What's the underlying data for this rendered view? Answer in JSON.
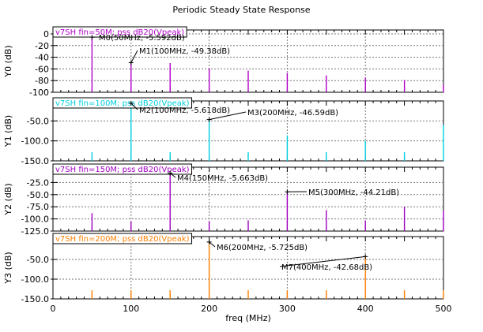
{
  "title": "Periodic Steady State Response",
  "chart_data": {
    "type": "bar",
    "title": "Periodic Steady State Response",
    "xlabel": "freq (MHz)",
    "xlim": [
      0,
      500
    ],
    "xticks": [
      "0",
      "100",
      "200",
      "300",
      "400",
      "500"
    ],
    "grid": true,
    "panels": [
      {
        "legend": "v7SH fin=50M; pss dB20(Vpeak)",
        "ylabel": "Y0 (dB)",
        "color": "#b000c8",
        "ylim": [
          -100,
          10
        ],
        "yticks": [
          "0",
          "-20",
          "-40",
          "-60",
          "-80",
          "-100"
        ],
        "yticks_values": [
          0,
          -20,
          -40,
          -60,
          -80,
          -100
        ],
        "x": [
          50,
          100,
          150,
          200,
          250,
          300,
          350,
          400,
          450,
          500
        ],
        "values": [
          -5.592,
          -49.38,
          -50,
          -59,
          -63,
          -67,
          -71,
          -75,
          -79,
          -87
        ],
        "markers": [
          {
            "label": "M0(50MHz, -5.592dB)",
            "x": 50,
            "y": -5.592
          },
          {
            "label": "M1(100MHz, -49.38dB)",
            "x": 100,
            "y": -49.38
          }
        ]
      },
      {
        "legend": "v7SH fin=100M; pss dB20(Vpeak)",
        "ylabel": "Y1 (dB)",
        "color": "#00cfe0",
        "ylim": [
          -150,
          0
        ],
        "yticks": [
          "-50.0",
          "-100.0",
          "-150.0"
        ],
        "yticks_values": [
          -50,
          -100,
          -150
        ],
        "x": [
          50,
          100,
          150,
          200,
          250,
          300,
          350,
          400,
          450,
          500
        ],
        "values": [
          -128,
          -5.618,
          -128,
          -46.59,
          -128,
          -86,
          -128,
          -100,
          -128,
          -60
        ],
        "markers": [
          {
            "label": "M2(100MHz, -5.618dB)",
            "x": 100,
            "y": -5.618
          },
          {
            "label": "M3(200MHz, -46.59dB)",
            "x": 200,
            "y": -46.59
          }
        ]
      },
      {
        "legend": "v7SH fin=150M; pss dB20(Vpeak)",
        "ylabel": "Y2 (dB)",
        "color": "#a000c0",
        "ylim": [
          -125,
          0
        ],
        "yticks": [
          "-25.0",
          "-50.0",
          "-75.0",
          "-100.0",
          "-125.0"
        ],
        "yticks_values": [
          -25,
          -50,
          -75,
          -100,
          -125
        ],
        "x": [
          50,
          100,
          150,
          200,
          250,
          300,
          350,
          400,
          450,
          500
        ],
        "values": [
          -88,
          -105,
          -5.663,
          -105,
          -103,
          -44.21,
          -82,
          -103,
          -75,
          -83
        ],
        "markers": [
          {
            "label": "M4(150MHz, -5.663dB)",
            "x": 150,
            "y": -5.663
          },
          {
            "label": "M5(300MHz, -44.21dB)",
            "x": 300,
            "y": -44.21
          }
        ]
      },
      {
        "legend": "v7SH fin=200M; pss dB20(Vpeak)",
        "ylabel": "Y3 (dB)",
        "color": "#ff8000",
        "ylim": [
          -150,
          0
        ],
        "yticks": [
          "-50.0",
          "-100.0",
          "-150.0"
        ],
        "yticks_values": [
          -50,
          -100,
          -150
        ],
        "x": [
          50,
          100,
          150,
          200,
          250,
          300,
          350,
          400,
          450,
          500
        ],
        "values": [
          -128,
          -128,
          -128,
          -5.725,
          -128,
          -128,
          -128,
          -42.68,
          -128,
          -128
        ],
        "markers": [
          {
            "label": "M6(200MHz, -5.725dB)",
            "x": 200,
            "y": -5.725
          },
          {
            "label": "M7(400MHz, -42.68dB)",
            "x": 400,
            "y": -42.68
          }
        ]
      }
    ]
  }
}
